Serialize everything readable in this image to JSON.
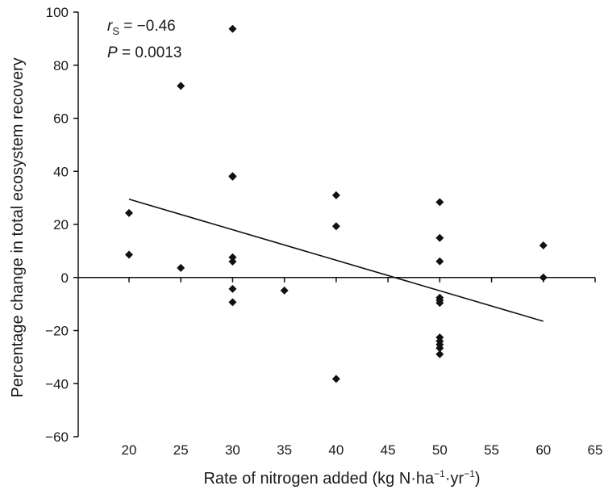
{
  "chart_data": {
    "type": "scatter",
    "title": "",
    "xlabel": {
      "main": "Rate of nitrogen added (kg N·ha",
      "sup1": "−1",
      "mid": "·yr",
      "sup2": "−1",
      "end": ")"
    },
    "ylabel": "Percentage change in total ecosystem recovery",
    "xlim": [
      15,
      65
    ],
    "ylim": [
      -60,
      100
    ],
    "x_ticks": [
      "20",
      "25",
      "30",
      "35",
      "40",
      "45",
      "50",
      "55",
      "60",
      "65"
    ],
    "y_ticks": [
      "−60",
      "−40",
      "−20",
      "0",
      "20",
      "40",
      "60",
      "80",
      "100"
    ],
    "grid": false,
    "annotations": {
      "r_symbol": "r",
      "r_subscript": "S",
      "r_value": " = −0.46",
      "p_symbol": "P",
      "p_value": " = 0.0013"
    },
    "points": [
      {
        "x": 20,
        "y": 24.3
      },
      {
        "x": 20,
        "y": 8.6
      },
      {
        "x": 25,
        "y": 72.2
      },
      {
        "x": 25,
        "y": 3.6
      },
      {
        "x": 30,
        "y": 93.7
      },
      {
        "x": 30,
        "y": 38.2
      },
      {
        "x": 30,
        "y": 38.0
      },
      {
        "x": 30,
        "y": 7.6
      },
      {
        "x": 30,
        "y": 6.0
      },
      {
        "x": 30,
        "y": -4.3
      },
      {
        "x": 30,
        "y": -9.3
      },
      {
        "x": 35,
        "y": -4.9
      },
      {
        "x": 40,
        "y": 31.0
      },
      {
        "x": 40,
        "y": 19.3
      },
      {
        "x": 40,
        "y": -38.2
      },
      {
        "x": 50,
        "y": 28.4
      },
      {
        "x": 50,
        "y": 14.9
      },
      {
        "x": 50,
        "y": 6.1
      },
      {
        "x": 50,
        "y": -7.6
      },
      {
        "x": 50,
        "y": -8.6
      },
      {
        "x": 50,
        "y": -9.6
      },
      {
        "x": 50,
        "y": -22.6
      },
      {
        "x": 50,
        "y": -24.0
      },
      {
        "x": 50,
        "y": -25.3
      },
      {
        "x": 50,
        "y": -26.6
      },
      {
        "x": 50,
        "y": -28.9
      },
      {
        "x": 60,
        "y": 12.1
      },
      {
        "x": 60,
        "y": 0.0
      }
    ],
    "regression_line": {
      "x1": 20,
      "y1": 29.5,
      "x2": 60,
      "y2": -16.5
    },
    "marker": "diamond",
    "colors": {
      "marker": "#111111",
      "line": "#111111",
      "axis": "#111111"
    }
  }
}
